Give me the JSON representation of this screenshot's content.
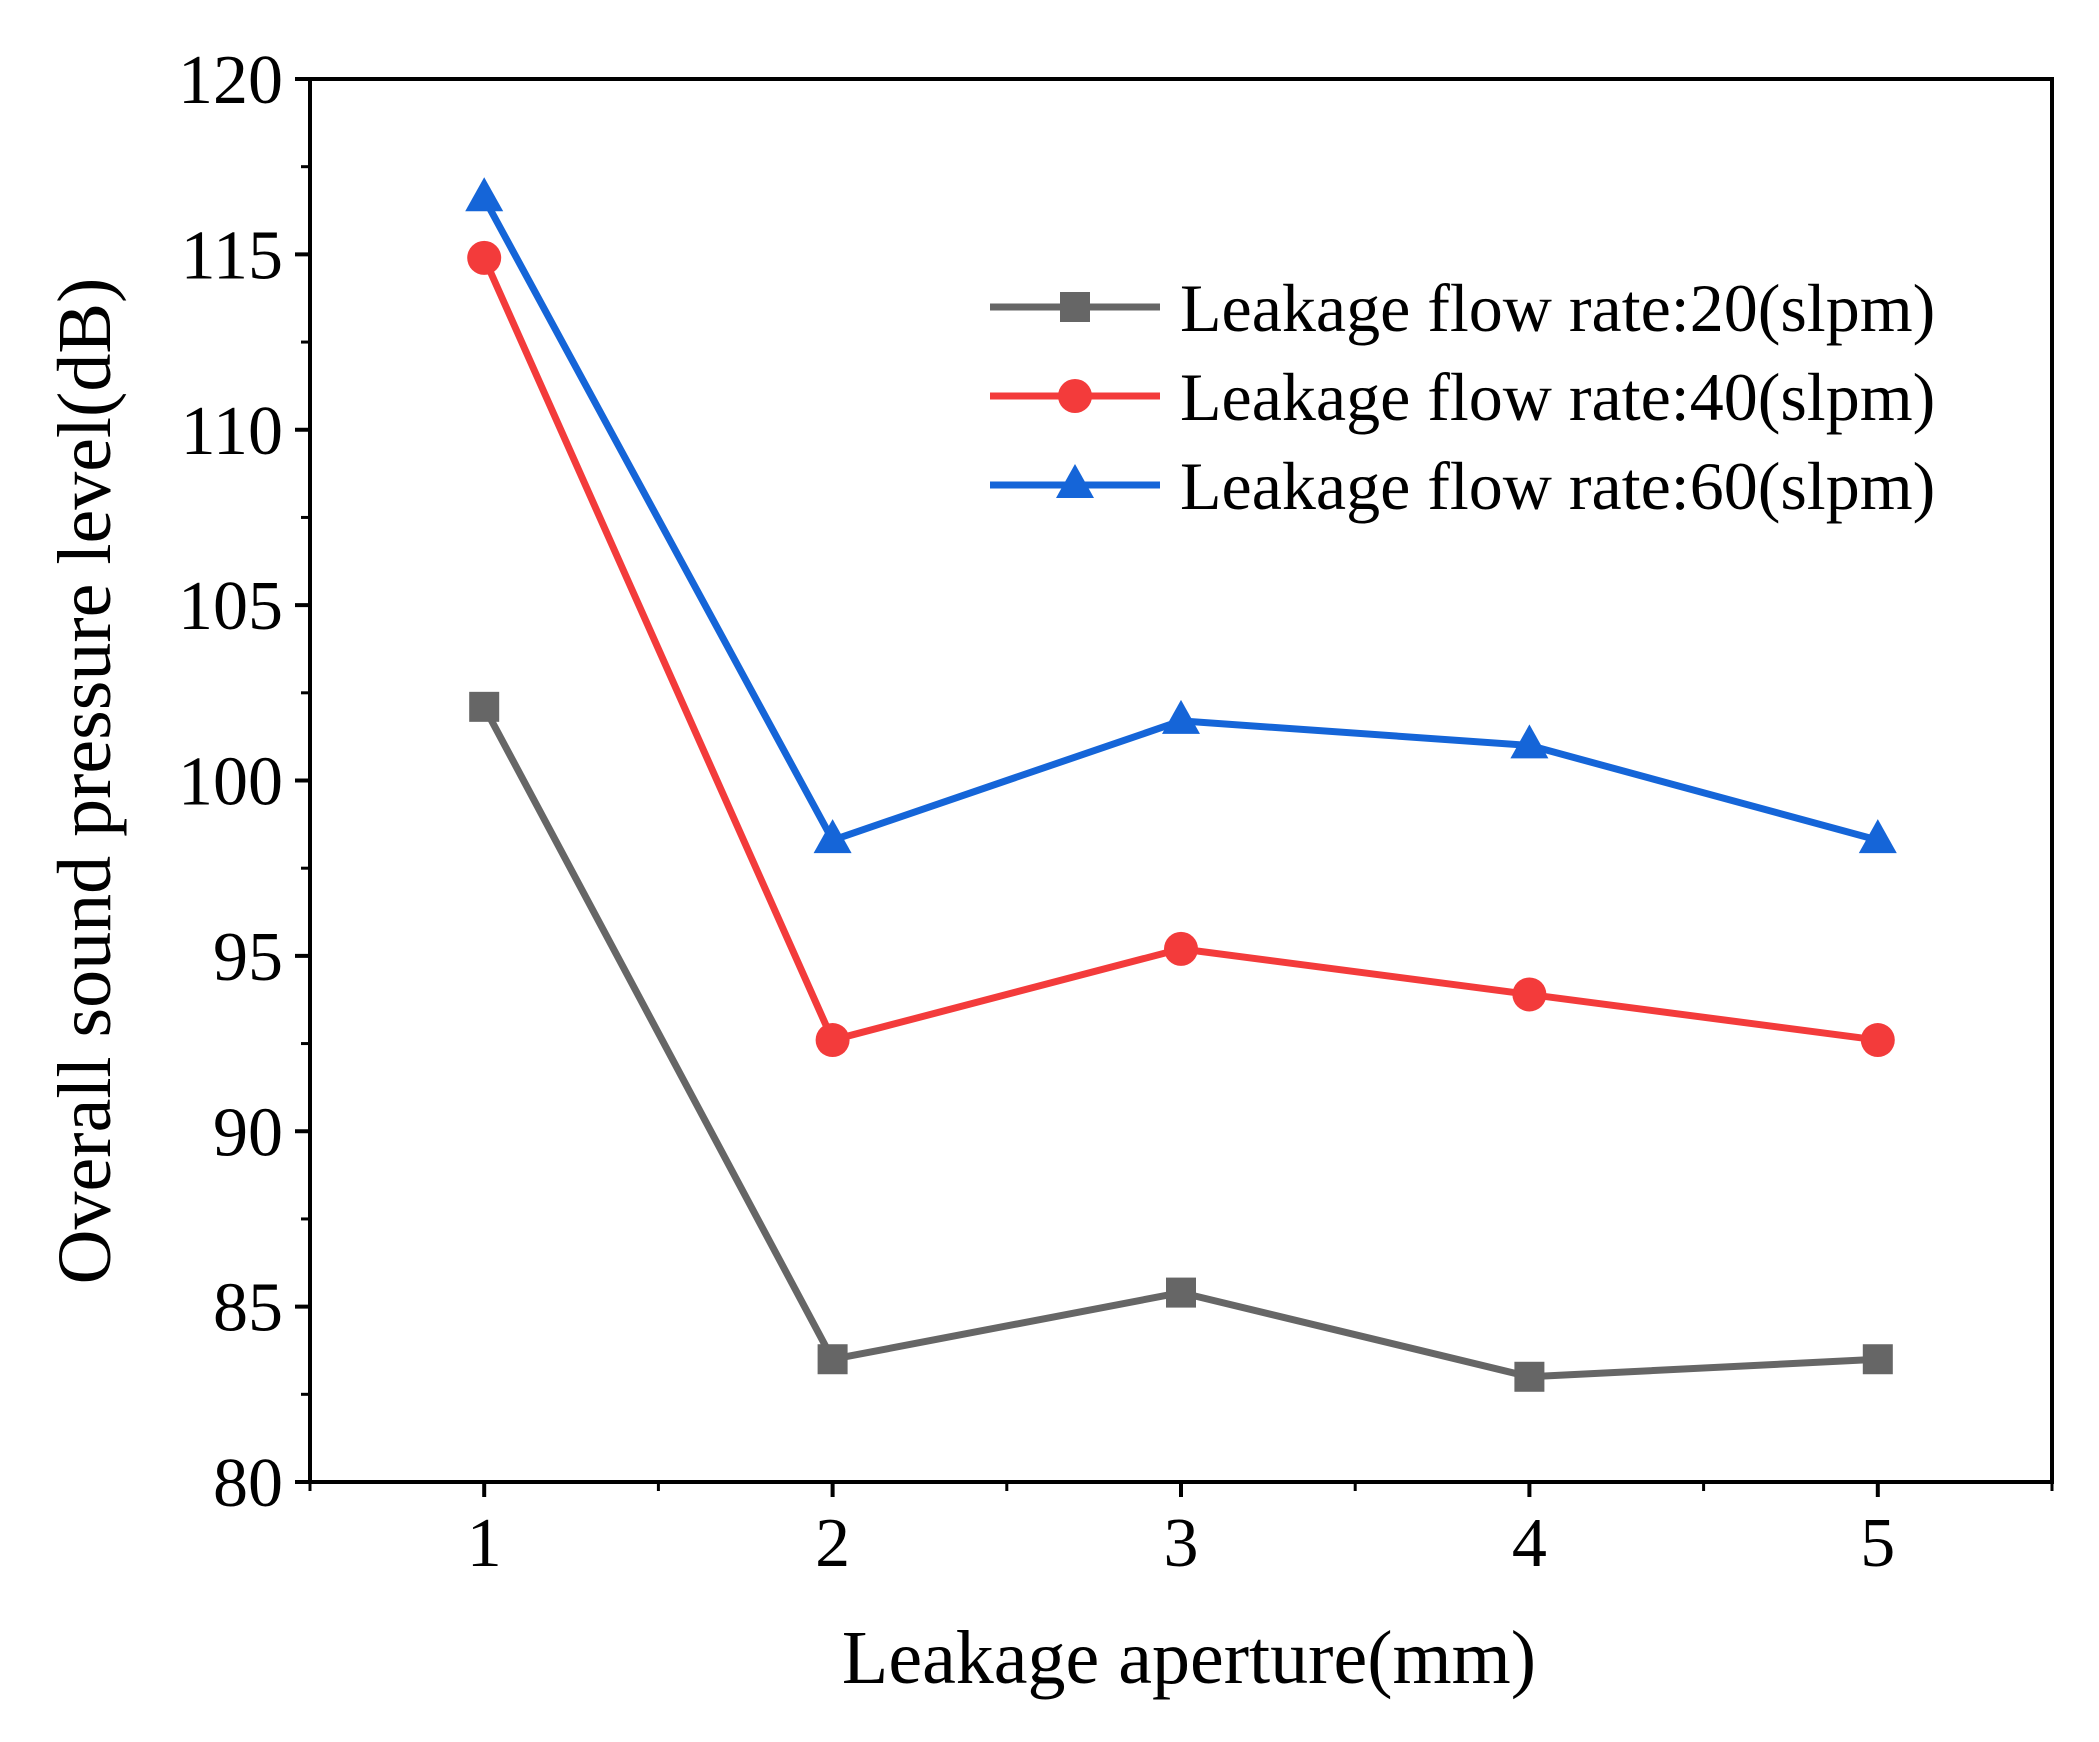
{
  "chart_data": {
    "type": "line",
    "title": "",
    "xlabel": "Leakage aperture(mm)",
    "ylabel": "Overall sound pressure level(dB)",
    "x": [
      1,
      2,
      3,
      4,
      5
    ],
    "x_ticks": [
      "1",
      "2",
      "3",
      "4",
      "5"
    ],
    "xlim": [
      0.5,
      5.5
    ],
    "ylim": [
      80,
      120
    ],
    "y_ticks": [
      "80",
      "85",
      "90",
      "95",
      "100",
      "105",
      "110",
      "115",
      "120"
    ],
    "grid": false,
    "legend_position": "top-right",
    "series": [
      {
        "name": "Leakage flow rate:20(slpm)",
        "marker": "square",
        "color": "#666666",
        "values": [
          102.1,
          83.5,
          85.4,
          83.0,
          83.5
        ]
      },
      {
        "name": "Leakage flow rate:40(slpm)",
        "marker": "circle",
        "color": "#f33b3b",
        "values": [
          114.9,
          92.6,
          95.2,
          93.9,
          92.6
        ]
      },
      {
        "name": "Leakage flow rate:60(slpm)",
        "marker": "triangle",
        "color": "#1565d8",
        "values": [
          116.6,
          98.3,
          101.7,
          101.0,
          98.3
        ]
      }
    ]
  }
}
